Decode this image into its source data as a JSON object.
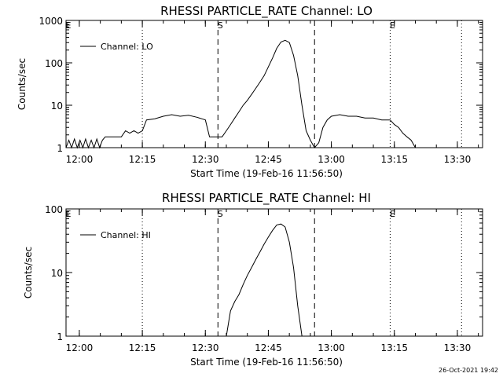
{
  "chart_data": [
    {
      "type": "line",
      "title": "RHESSI PARTICLE_RATE Channel: LO",
      "xlabel": "Start Time (19-Feb-16 11:56:50)",
      "ylabel": "Counts/sec",
      "yscale": "log",
      "ylim": [
        1,
        1000
      ],
      "xlim": [
        "11:56:50",
        "13:36:00"
      ],
      "x_ticks": [
        "12:00",
        "12:15",
        "12:30",
        "12:45",
        "13:00",
        "13:15",
        "13:30"
      ],
      "y_ticks": [
        "1",
        "10",
        "100",
        "1000"
      ],
      "legend": "Channel: LO",
      "legend_position": "top-left",
      "markers": {
        "S": "12:33",
        "E": "13:14"
      },
      "dashed_lines": [
        "12:33",
        "12:56"
      ],
      "dotted_lines": [
        "12:15",
        "13:14",
        "13:31"
      ],
      "series": [
        {
          "name": "Channel: LO",
          "points": [
            [
              "11:56:50",
              1.0
            ],
            [
              "11:57:30",
              1.5
            ],
            [
              "11:58:10",
              1.0
            ],
            [
              "11:58:50",
              1.6
            ],
            [
              "11:59:30",
              1.0
            ],
            [
              "12:00:10",
              1.5
            ],
            [
              "12:00:50",
              1.0
            ],
            [
              "12:01:30",
              1.6
            ],
            [
              "12:02:10",
              1.0
            ],
            [
              "12:02:50",
              1.5
            ],
            [
              "12:03:30",
              1.0
            ],
            [
              "12:04:10",
              1.6
            ],
            [
              "12:04:50",
              1.0
            ],
            [
              "12:05:30",
              1.5
            ],
            [
              "12:06:10",
              1.8
            ],
            [
              "12:08:00",
              1.8
            ],
            [
              "12:10:00",
              1.8
            ],
            [
              "12:11:00",
              2.5
            ],
            [
              "12:12:00",
              2.2
            ],
            [
              "12:13:00",
              2.5
            ],
            [
              "12:14:00",
              2.2
            ],
            [
              "12:15:00",
              2.5
            ],
            [
              "12:16:00",
              4.5
            ],
            [
              "12:18:00",
              4.8
            ],
            [
              "12:20:00",
              5.5
            ],
            [
              "12:22:00",
              6.0
            ],
            [
              "12:24:00",
              5.5
            ],
            [
              "12:26:00",
              5.8
            ],
            [
              "12:28:00",
              5.2
            ],
            [
              "12:30:00",
              4.5
            ],
            [
              "12:31:00",
              1.8
            ],
            [
              "12:33:30",
              1.8
            ],
            [
              "12:34:00",
              1.8
            ],
            [
              "12:35:00",
              2.5
            ],
            [
              "12:36:00",
              3.5
            ],
            [
              "12:37:00",
              5.0
            ],
            [
              "12:38:00",
              7.0
            ],
            [
              "12:39:00",
              10.0
            ],
            [
              "12:40:00",
              13.0
            ],
            [
              "12:41:00",
              18.0
            ],
            [
              "12:42:00",
              25.0
            ],
            [
              "12:43:00",
              35.0
            ],
            [
              "12:44:00",
              50.0
            ],
            [
              "12:45:00",
              80.0
            ],
            [
              "12:46:00",
              130.0
            ],
            [
              "12:47:00",
              220.0
            ],
            [
              "12:48:00",
              310.0
            ],
            [
              "12:49:00",
              340.0
            ],
            [
              "12:50:00",
              300.0
            ],
            [
              "12:51:00",
              150.0
            ],
            [
              "12:52:00",
              50.0
            ],
            [
              "12:53:00",
              10.0
            ],
            [
              "12:54:00",
              2.5
            ],
            [
              "12:55:00",
              1.5
            ],
            [
              "12:56:00",
              1.0
            ],
            [
              "12:57:00",
              1.3
            ],
            [
              "12:58:00",
              3.0
            ],
            [
              "12:59:00",
              4.5
            ],
            [
              "13:00:00",
              5.5
            ],
            [
              "13:02:00",
              6.0
            ],
            [
              "13:04:00",
              5.5
            ],
            [
              "13:06:00",
              5.5
            ],
            [
              "13:08:00",
              5.0
            ],
            [
              "13:10:00",
              5.0
            ],
            [
              "13:12:00",
              4.5
            ],
            [
              "13:14:00",
              4.5
            ],
            [
              "13:15:00",
              3.5
            ],
            [
              "13:16:00",
              3.0
            ],
            [
              "13:17:00",
              2.2
            ],
            [
              "13:18:00",
              1.8
            ],
            [
              "13:19:00",
              1.5
            ],
            [
              "13:20:00",
              1.0
            ]
          ]
        }
      ]
    },
    {
      "type": "line",
      "title": "RHESSI PARTICLE_RATE Channel: HI",
      "xlabel": "Start Time (19-Feb-16 11:56:50)",
      "ylabel": "Counts/sec",
      "yscale": "log",
      "ylim": [
        1,
        100
      ],
      "xlim": [
        "11:56:50",
        "13:36:00"
      ],
      "x_ticks": [
        "12:00",
        "12:15",
        "12:30",
        "12:45",
        "13:00",
        "13:15",
        "13:30"
      ],
      "y_ticks": [
        "1",
        "10",
        "100"
      ],
      "legend": "Channel: HI",
      "legend_position": "top-left",
      "markers": {
        "S": "12:33",
        "E": "13:14"
      },
      "dashed_lines": [
        "12:33",
        "12:56"
      ],
      "dotted_lines": [
        "12:15",
        "13:14",
        "13:31"
      ],
      "series": [
        {
          "name": "Channel: HI",
          "points": [
            [
              "12:35:00",
              1.0
            ],
            [
              "12:35:30",
              1.6
            ],
            [
              "12:36:00",
              2.5
            ],
            [
              "12:37:00",
              3.5
            ],
            [
              "12:38:00",
              4.5
            ],
            [
              "12:39:00",
              6.5
            ],
            [
              "12:40:00",
              9.0
            ],
            [
              "12:41:00",
              12.0
            ],
            [
              "12:42:00",
              16.0
            ],
            [
              "12:43:00",
              21.0
            ],
            [
              "12:44:00",
              28.0
            ],
            [
              "12:45:00",
              36.0
            ],
            [
              "12:46:00",
              46.0
            ],
            [
              "12:47:00",
              56.0
            ],
            [
              "12:48:00",
              58.0
            ],
            [
              "12:49:00",
              52.0
            ],
            [
              "12:50:00",
              30.0
            ],
            [
              "12:51:00",
              12.0
            ],
            [
              "12:52:00",
              3.0
            ],
            [
              "12:53:00",
              1.0
            ]
          ]
        }
      ]
    }
  ],
  "footer": {
    "date_stamp": "26-Oct-2021 19:42"
  }
}
